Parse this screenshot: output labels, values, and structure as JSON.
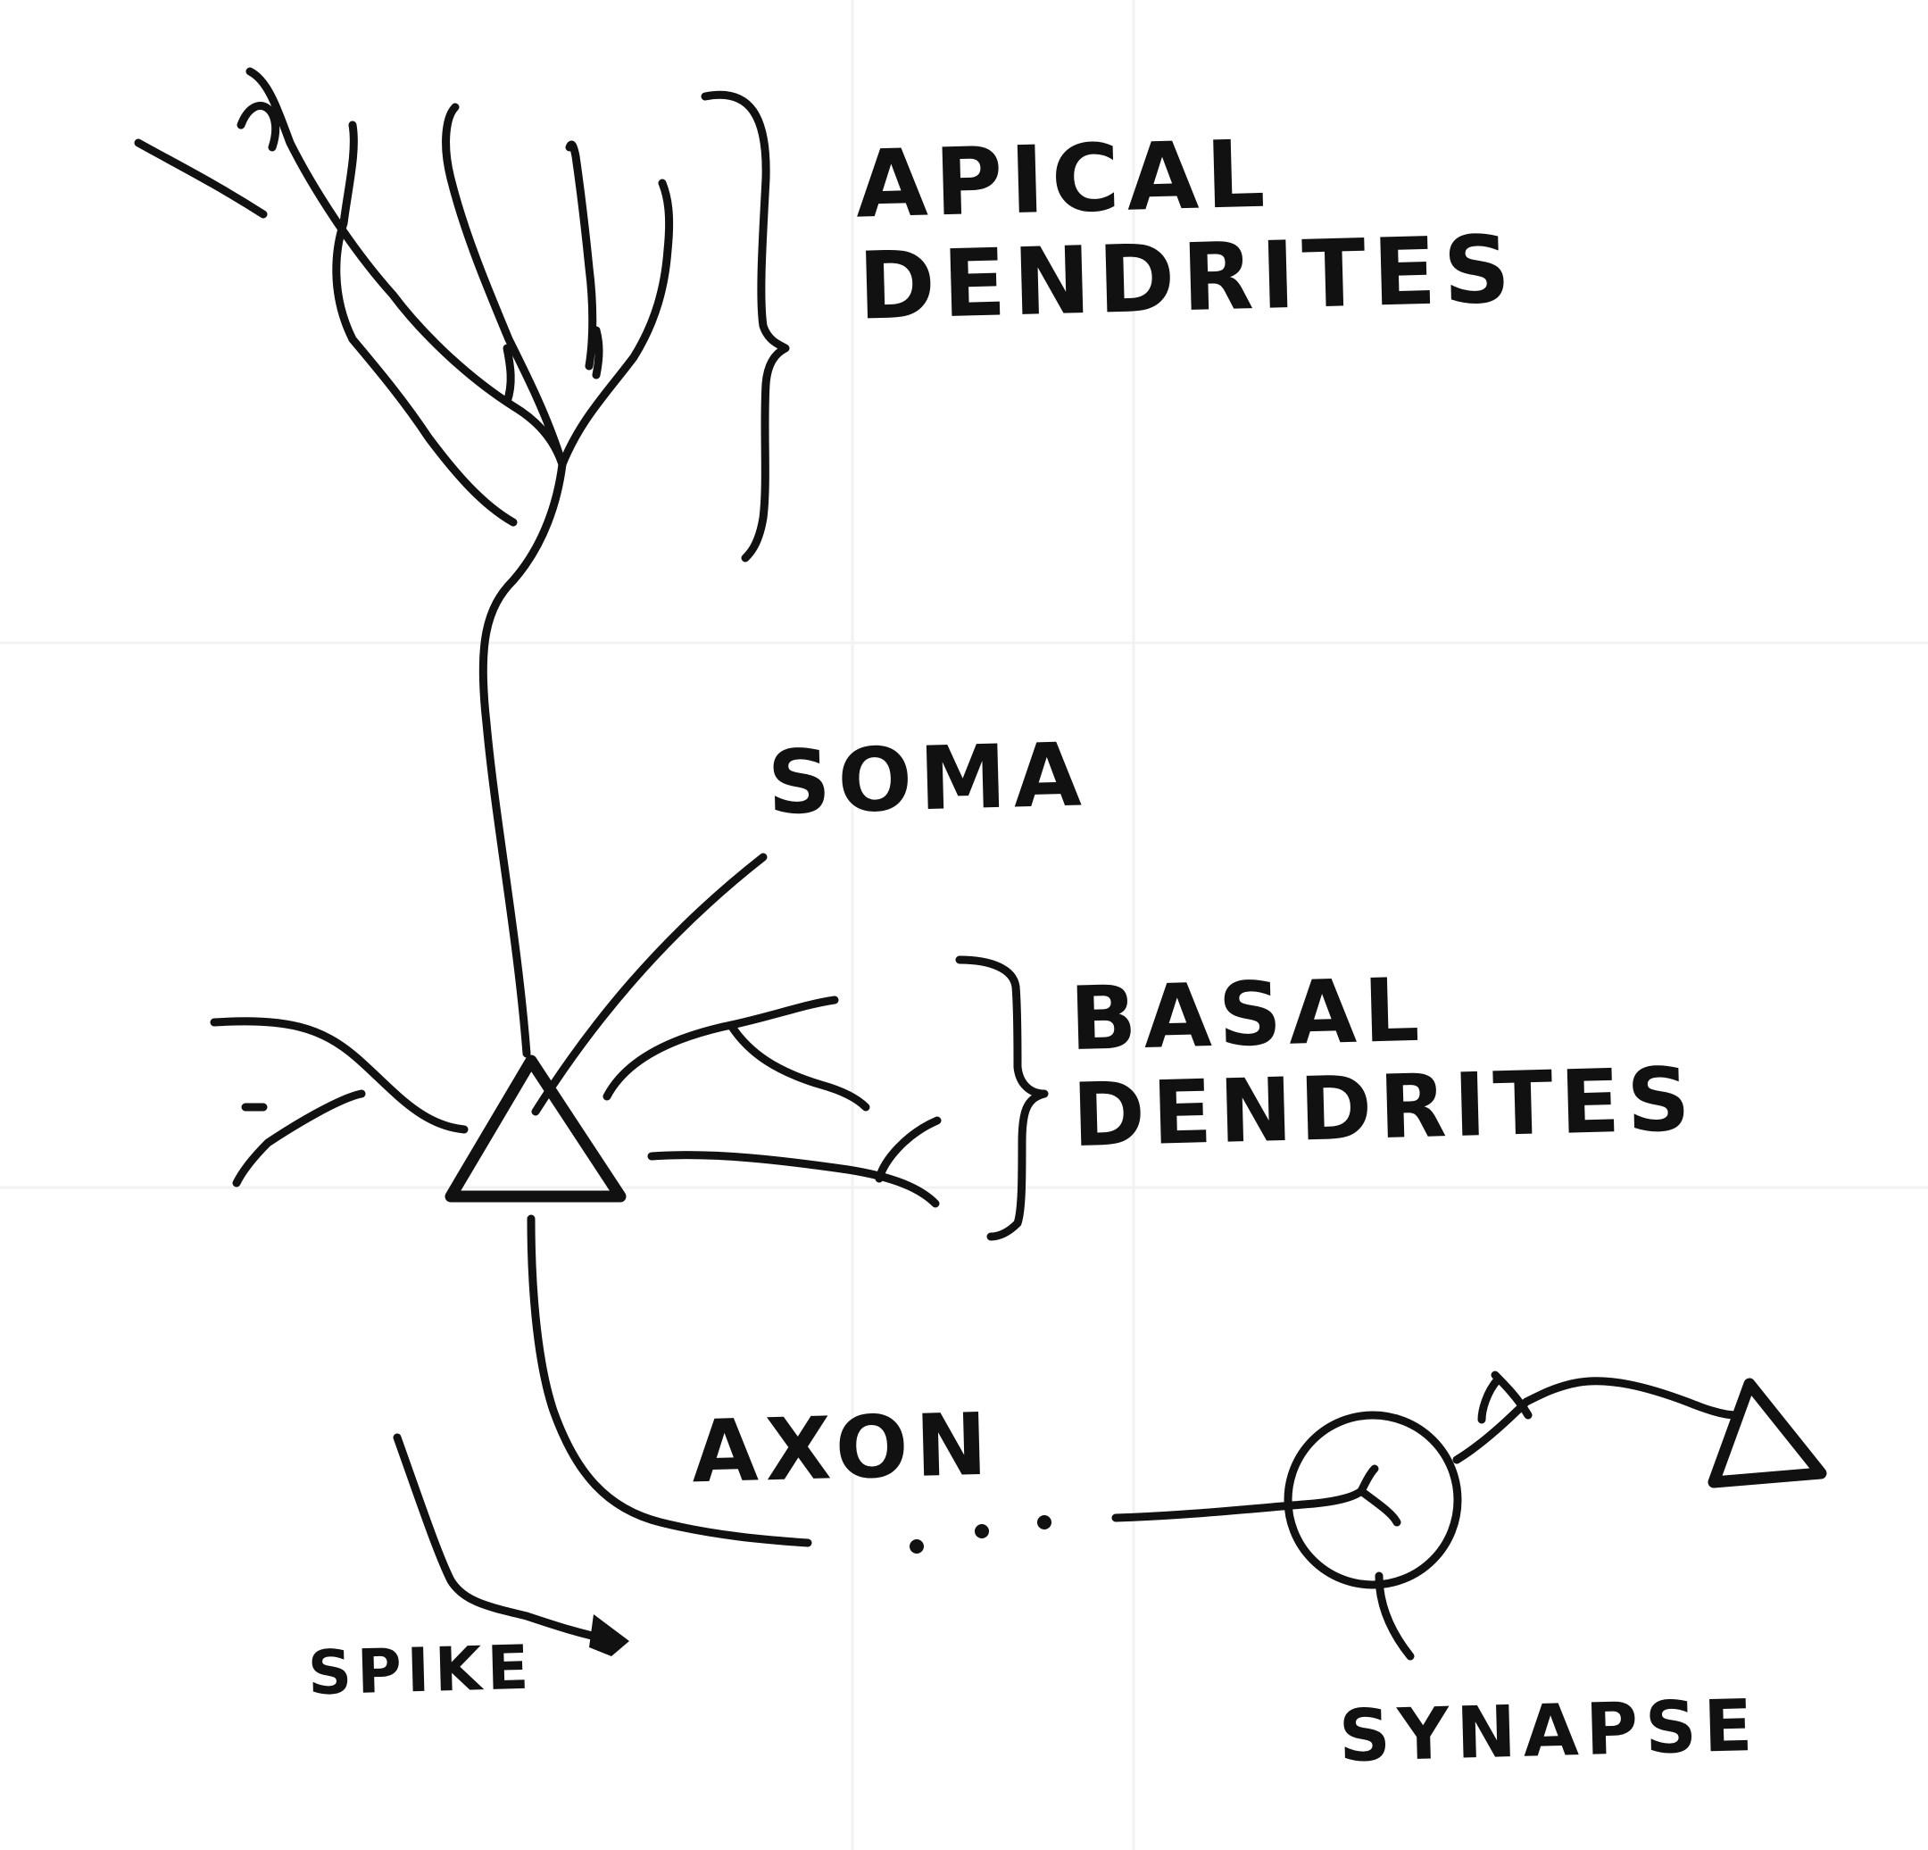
{
  "labels": {
    "apical": "APICAL\nDENDRITES",
    "soma": "SOMA",
    "basal": "BASAL\nDENDRITES",
    "axon": "AXON",
    "spike": "SPIKE",
    "synapse": "SYNAPSE"
  },
  "colors": {
    "ink": "#111111",
    "paper": "#ffffff",
    "grid": "#f2f2f2"
  }
}
